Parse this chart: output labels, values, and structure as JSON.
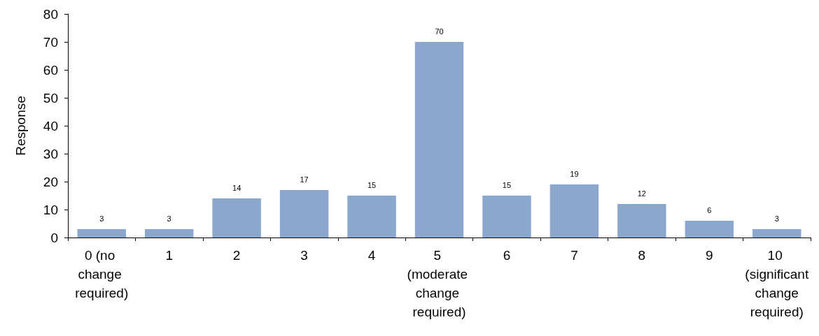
{
  "chart_data": {
    "type": "bar",
    "ylabel": "Response",
    "categories": [
      "0 (no change required)",
      "1",
      "2",
      "3",
      "4",
      "5 (moderate change required)",
      "6",
      "7",
      "8",
      "9",
      "10 (significant change required)"
    ],
    "values": [
      3,
      3,
      14,
      17,
      15,
      70,
      15,
      19,
      12,
      6,
      3
    ],
    "color": "#8ba7ce",
    "ylim": [
      0,
      80
    ],
    "yticks": [
      0,
      10,
      20,
      30,
      40,
      50,
      60,
      70,
      80
    ],
    "grid": false,
    "data_labels": true
  }
}
